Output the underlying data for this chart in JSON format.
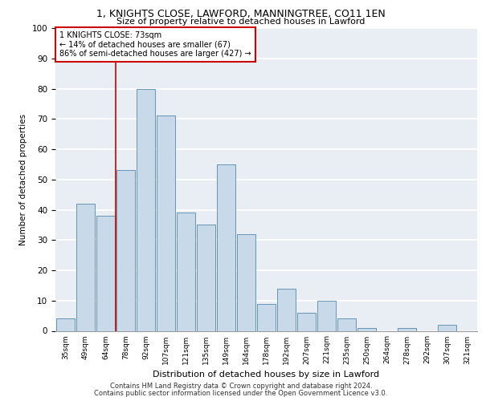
{
  "title_line1": "1, KNIGHTS CLOSE, LAWFORD, MANNINGTREE, CO11 1EN",
  "title_line2": "Size of property relative to detached houses in Lawford",
  "xlabel": "Distribution of detached houses by size in Lawford",
  "ylabel": "Number of detached properties",
  "categories": [
    "35sqm",
    "49sqm",
    "64sqm",
    "78sqm",
    "92sqm",
    "107sqm",
    "121sqm",
    "135sqm",
    "149sqm",
    "164sqm",
    "178sqm",
    "192sqm",
    "207sqm",
    "221sqm",
    "235sqm",
    "250sqm",
    "264sqm",
    "278sqm",
    "292sqm",
    "307sqm",
    "321sqm"
  ],
  "values": [
    4,
    42,
    38,
    53,
    80,
    71,
    39,
    35,
    55,
    32,
    9,
    14,
    6,
    10,
    4,
    1,
    0,
    1,
    0,
    2,
    0
  ],
  "bar_color": "#c8daea",
  "bar_edge_color": "#5588aa",
  "background_color": "#e8eef4",
  "grid_color": "#ffffff",
  "annotation_text": "1 KNIGHTS CLOSE: 73sqm\n← 14% of detached houses are smaller (67)\n86% of semi-detached houses are larger (427) →",
  "vline_x": 2.5,
  "box_color": "#cc0000",
  "ylim": [
    0,
    100
  ],
  "yticks": [
    0,
    10,
    20,
    30,
    40,
    50,
    60,
    70,
    80,
    90,
    100
  ],
  "footer_line1": "Contains HM Land Registry data © Crown copyright and database right 2024.",
  "footer_line2": "Contains public sector information licensed under the Open Government Licence v3.0."
}
